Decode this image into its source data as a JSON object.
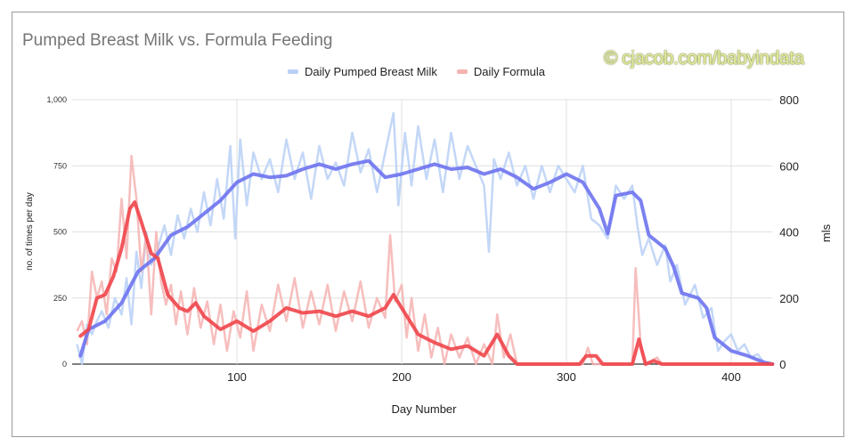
{
  "chart_data": {
    "type": "line",
    "title": "Pumped Breast Milk vs. Formula Feeding",
    "watermark": "© cjacob.com/babyindata",
    "xlabel": "Day Number",
    "ylabel_left": "no. of times per day",
    "ylabel_right": "mls",
    "xlim": [
      0,
      425
    ],
    "ylim_left": [
      0,
      1000
    ],
    "ylim_right": [
      0,
      800
    ],
    "x_ticks": [
      "100",
      "200",
      "300",
      "400"
    ],
    "y_ticks_left": [
      "0",
      "250",
      "500",
      "750",
      "1,000"
    ],
    "y_ticks_right": [
      "0",
      "200",
      "400",
      "600",
      "800"
    ],
    "grid": true,
    "legend_position": "top",
    "series": [
      {
        "name": "Daily Pumped Breast Milk",
        "color": "#6e73ee",
        "raw_color": "#b9d0f6",
        "raw": [
          [
            3,
            60
          ],
          [
            6,
            0
          ],
          [
            9,
            120
          ],
          [
            12,
            90
          ],
          [
            15,
            130
          ],
          [
            18,
            160
          ],
          [
            22,
            110
          ],
          [
            26,
            200
          ],
          [
            30,
            150
          ],
          [
            33,
            260
          ],
          [
            36,
            120
          ],
          [
            39,
            340
          ],
          [
            42,
            230
          ],
          [
            45,
            400
          ],
          [
            48,
            300
          ],
          [
            52,
            350
          ],
          [
            56,
            420
          ],
          [
            60,
            330
          ],
          [
            64,
            450
          ],
          [
            68,
            380
          ],
          [
            72,
            470
          ],
          [
            76,
            400
          ],
          [
            80,
            520
          ],
          [
            84,
            420
          ],
          [
            88,
            560
          ],
          [
            92,
            440
          ],
          [
            96,
            660
          ],
          [
            99,
            380
          ],
          [
            102,
            680
          ],
          [
            106,
            480
          ],
          [
            110,
            640
          ],
          [
            115,
            560
          ],
          [
            120,
            620
          ],
          [
            125,
            520
          ],
          [
            130,
            680
          ],
          [
            135,
            560
          ],
          [
            140,
            640
          ],
          [
            145,
            500
          ],
          [
            150,
            660
          ],
          [
            155,
            560
          ],
          [
            160,
            610
          ],
          [
            165,
            540
          ],
          [
            170,
            700
          ],
          [
            175,
            580
          ],
          [
            180,
            650
          ],
          [
            185,
            520
          ],
          [
            190,
            640
          ],
          [
            195,
            760
          ],
          [
            198,
            480
          ],
          [
            202,
            700
          ],
          [
            206,
            540
          ],
          [
            210,
            720
          ],
          [
            215,
            560
          ],
          [
            220,
            680
          ],
          [
            225,
            520
          ],
          [
            230,
            700
          ],
          [
            235,
            560
          ],
          [
            240,
            660
          ],
          [
            245,
            600
          ],
          [
            250,
            540
          ],
          [
            253,
            340
          ],
          [
            256,
            620
          ],
          [
            260,
            560
          ],
          [
            265,
            640
          ],
          [
            270,
            540
          ],
          [
            275,
            600
          ],
          [
            280,
            500
          ],
          [
            285,
            600
          ],
          [
            290,
            520
          ],
          [
            295,
            600
          ],
          [
            300,
            560
          ],
          [
            305,
            520
          ],
          [
            310,
            600
          ],
          [
            315,
            440
          ],
          [
            320,
            420
          ],
          [
            325,
            380
          ],
          [
            330,
            540
          ],
          [
            335,
            500
          ],
          [
            340,
            540
          ],
          [
            343,
            420
          ],
          [
            346,
            330
          ],
          [
            350,
            380
          ],
          [
            355,
            300
          ],
          [
            360,
            360
          ],
          [
            363,
            250
          ],
          [
            367,
            300
          ],
          [
            372,
            180
          ],
          [
            378,
            240
          ],
          [
            383,
            140
          ],
          [
            388,
            170
          ],
          [
            392,
            40
          ],
          [
            396,
            70
          ],
          [
            400,
            90
          ],
          [
            404,
            40
          ],
          [
            408,
            60
          ],
          [
            412,
            20
          ],
          [
            416,
            30
          ],
          [
            420,
            5
          ],
          [
            425,
            0
          ]
        ],
        "smoothed": [
          [
            5,
            25
          ],
          [
            10,
            105
          ],
          [
            20,
            130
          ],
          [
            30,
            185
          ],
          [
            40,
            280
          ],
          [
            50,
            320
          ],
          [
            60,
            390
          ],
          [
            70,
            415
          ],
          [
            80,
            455
          ],
          [
            90,
            495
          ],
          [
            100,
            550
          ],
          [
            110,
            575
          ],
          [
            120,
            565
          ],
          [
            130,
            570
          ],
          [
            140,
            590
          ],
          [
            150,
            605
          ],
          [
            160,
            590
          ],
          [
            170,
            605
          ],
          [
            180,
            615
          ],
          [
            190,
            565
          ],
          [
            200,
            575
          ],
          [
            210,
            590
          ],
          [
            220,
            605
          ],
          [
            230,
            590
          ],
          [
            240,
            595
          ],
          [
            250,
            575
          ],
          [
            260,
            590
          ],
          [
            270,
            565
          ],
          [
            280,
            530
          ],
          [
            290,
            550
          ],
          [
            300,
            575
          ],
          [
            310,
            550
          ],
          [
            320,
            470
          ],
          [
            325,
            395
          ],
          [
            330,
            510
          ],
          [
            340,
            520
          ],
          [
            345,
            495
          ],
          [
            350,
            390
          ],
          [
            360,
            350
          ],
          [
            365,
            295
          ],
          [
            370,
            215
          ],
          [
            380,
            200
          ],
          [
            385,
            170
          ],
          [
            390,
            80
          ],
          [
            400,
            40
          ],
          [
            410,
            25
          ],
          [
            420,
            5
          ],
          [
            425,
            0
          ]
        ]
      },
      {
        "name": "Daily Formula",
        "color": "#f0454a",
        "raw_color": "#f5b3b1",
        "raw": [
          [
            3,
            100
          ],
          [
            6,
            130
          ],
          [
            9,
            60
          ],
          [
            12,
            280
          ],
          [
            15,
            200
          ],
          [
            18,
            250
          ],
          [
            21,
            150
          ],
          [
            24,
            320
          ],
          [
            27,
            280
          ],
          [
            30,
            500
          ],
          [
            33,
            320
          ],
          [
            36,
            630
          ],
          [
            39,
            500
          ],
          [
            42,
            280
          ],
          [
            45,
            390
          ],
          [
            48,
            150
          ],
          [
            51,
            400
          ],
          [
            54,
            250
          ],
          [
            57,
            180
          ],
          [
            60,
            240
          ],
          [
            63,
            120
          ],
          [
            66,
            220
          ],
          [
            70,
            90
          ],
          [
            74,
            230
          ],
          [
            78,
            110
          ],
          [
            82,
            190
          ],
          [
            86,
            60
          ],
          [
            90,
            180
          ],
          [
            94,
            40
          ],
          [
            98,
            160
          ],
          [
            102,
            80
          ],
          [
            106,
            220
          ],
          [
            110,
            40
          ],
          [
            115,
            180
          ],
          [
            120,
            100
          ],
          [
            125,
            240
          ],
          [
            130,
            130
          ],
          [
            135,
            260
          ],
          [
            140,
            110
          ],
          [
            145,
            220
          ],
          [
            150,
            120
          ],
          [
            155,
            240
          ],
          [
            160,
            100
          ],
          [
            165,
            220
          ],
          [
            170,
            130
          ],
          [
            175,
            250
          ],
          [
            180,
            110
          ],
          [
            185,
            200
          ],
          [
            190,
            140
          ],
          [
            193,
            390
          ],
          [
            196,
            190
          ],
          [
            200,
            240
          ],
          [
            203,
            80
          ],
          [
            206,
            200
          ],
          [
            210,
            40
          ],
          [
            214,
            150
          ],
          [
            218,
            20
          ],
          [
            222,
            110
          ],
          [
            226,
            0
          ],
          [
            230,
            90
          ],
          [
            235,
            20
          ],
          [
            240,
            80
          ],
          [
            245,
            0
          ],
          [
            250,
            60
          ],
          [
            255,
            0
          ],
          [
            258,
            150
          ],
          [
            262,
            20
          ],
          [
            266,
            90
          ],
          [
            270,
            0
          ],
          [
            310,
            0
          ],
          [
            313,
            50
          ],
          [
            316,
            0
          ],
          [
            340,
            0
          ],
          [
            342,
            290
          ],
          [
            345,
            60
          ],
          [
            348,
            0
          ],
          [
            355,
            20
          ],
          [
            358,
            0
          ],
          [
            425,
            0
          ]
        ],
        "smoothed": [
          [
            5,
            85
          ],
          [
            10,
            105
          ],
          [
            15,
            200
          ],
          [
            20,
            210
          ],
          [
            25,
            265
          ],
          [
            30,
            350
          ],
          [
            35,
            470
          ],
          [
            38,
            490
          ],
          [
            42,
            430
          ],
          [
            48,
            335
          ],
          [
            52,
            320
          ],
          [
            58,
            210
          ],
          [
            65,
            170
          ],
          [
            70,
            160
          ],
          [
            75,
            185
          ],
          [
            80,
            145
          ],
          [
            90,
            105
          ],
          [
            100,
            130
          ],
          [
            110,
            100
          ],
          [
            120,
            130
          ],
          [
            130,
            170
          ],
          [
            140,
            155
          ],
          [
            150,
            160
          ],
          [
            160,
            145
          ],
          [
            170,
            160
          ],
          [
            180,
            145
          ],
          [
            190,
            170
          ],
          [
            195,
            210
          ],
          [
            200,
            170
          ],
          [
            210,
            90
          ],
          [
            220,
            65
          ],
          [
            230,
            45
          ],
          [
            240,
            55
          ],
          [
            250,
            25
          ],
          [
            258,
            90
          ],
          [
            265,
            25
          ],
          [
            270,
            0
          ],
          [
            308,
            0
          ],
          [
            312,
            25
          ],
          [
            318,
            25
          ],
          [
            322,
            0
          ],
          [
            340,
            0
          ],
          [
            344,
            75
          ],
          [
            348,
            0
          ],
          [
            353,
            10
          ],
          [
            358,
            0
          ],
          [
            425,
            0
          ]
        ]
      }
    ]
  }
}
